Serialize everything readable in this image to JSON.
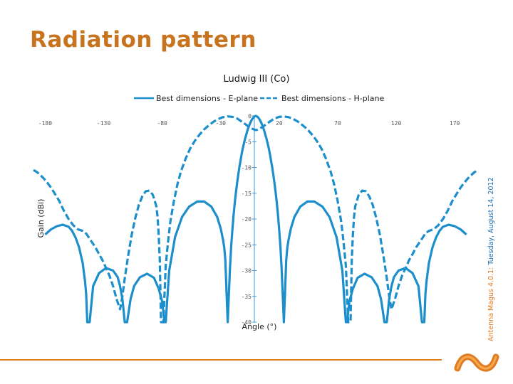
{
  "slide": {
    "title": "Radiation pattern",
    "side_note_prefix": "Antenna Magus 4.0.1:",
    "side_note_date": " Tuesday, August 14, 2012"
  },
  "colors": {
    "title": "#c8741f",
    "accent": "#e07b22",
    "series": "#1b8ecb",
    "note": "#1c6fb3"
  },
  "chart_data": {
    "type": "line",
    "title": "Ludwig III (Co)",
    "xlabel": "Angle (°)",
    "ylabel": "Gain (dBi)",
    "xlim": [
      -190,
      190
    ],
    "ylim": [
      -40,
      0
    ],
    "x_ticks": [
      -180,
      -130,
      -80,
      -30,
      20,
      70,
      120,
      170
    ],
    "y_ticks": [
      0,
      -5,
      -10,
      -15,
      -20,
      -25,
      -30,
      -35,
      -40
    ],
    "legend": {
      "position": "top-center"
    },
    "grid": false,
    "series": [
      {
        "name": "Best dimensions - E-plane",
        "style": "solid",
        "x": [
          -180,
          -175,
          -170,
          -165,
          -160,
          -157,
          -154,
          -151,
          -148,
          -146,
          -145,
          -144,
          -142,
          -139,
          -134,
          -128,
          -122,
          -118,
          -116,
          -114,
          -112,
          -110,
          -107,
          -104,
          -99,
          -93,
          -87,
          -83,
          -80,
          -79,
          -78,
          -77,
          -74,
          -69,
          -63,
          -57,
          -50,
          -44,
          -38,
          -33,
          -30,
          -28,
          -27,
          -26,
          -25,
          -24,
          -23,
          -22,
          -21,
          -20,
          -19,
          -18,
          -17,
          -16,
          -15,
          -14,
          -13,
          -12,
          -11,
          -10,
          -9,
          -8,
          -7,
          -6,
          -5,
          -4,
          -3,
          -2,
          -1,
          0,
          1,
          2,
          3,
          4,
          5,
          6,
          7,
          8,
          9,
          10,
          11,
          12,
          13,
          14,
          15,
          16,
          17,
          18,
          19,
          20,
          21,
          22,
          23,
          24,
          25,
          26,
          27,
          28,
          30,
          33,
          38,
          44,
          50,
          57,
          63,
          69,
          74,
          77,
          78,
          79,
          80,
          83,
          87,
          93,
          99,
          104,
          107,
          110,
          112,
          114,
          116,
          118,
          122,
          128,
          134,
          139,
          142,
          144,
          145,
          146,
          148,
          151,
          154,
          157,
          160,
          165,
          170,
          175,
          180
        ],
        "values": [
          -23,
          -22,
          -21.4,
          -21.1,
          -21.5,
          -22.3,
          -23.6,
          -25.5,
          -28.5,
          -32,
          -34.5,
          -40,
          -40,
          -33,
          -30.5,
          -29.5,
          -30,
          -31.3,
          -33,
          -35.5,
          -40,
          -40,
          -35.5,
          -33,
          -31.3,
          -30.6,
          -31.4,
          -33.5,
          -36,
          -38,
          -40,
          -40,
          -30,
          -23.5,
          -19.6,
          -17.6,
          -16.6,
          -16.6,
          -17.6,
          -19.6,
          -21.8,
          -24,
          -25.5,
          -28,
          -34,
          -40,
          -34.6,
          -29.2,
          -25.2,
          -22,
          -19.3,
          -17,
          -14.9,
          -13.1,
          -11.4,
          -9.9,
          -8.6,
          -7.3,
          -6.2,
          -5.2,
          -4.3,
          -3.5,
          -2.7,
          -2.1,
          -1.5,
          -1,
          -0.6,
          -0.3,
          -0.1,
          0,
          -0.1,
          -0.3,
          -0.6,
          -1,
          -1.5,
          -2.1,
          -2.7,
          -3.5,
          -4.3,
          -5.2,
          -6.2,
          -7.3,
          -8.6,
          -9.9,
          -11.4,
          -13.1,
          -14.9,
          -17,
          -19.3,
          -22,
          -25.2,
          -29.2,
          -34.6,
          -40,
          -34,
          -28,
          -25.5,
          -24,
          -21.8,
          -19.6,
          -17.6,
          -16.6,
          -16.6,
          -17.6,
          -19.6,
          -23.5,
          -30,
          -40,
          -40,
          -38,
          -36,
          -33.5,
          -31.4,
          -30.6,
          -31.3,
          -33,
          -35.5,
          -40,
          -40,
          -35.5,
          -33,
          -31.3,
          -30,
          -29.5,
          -30.5,
          -33,
          -40,
          -40,
          -34.5,
          -32,
          -28.5,
          -25.5,
          -23.6,
          -22.3,
          -21.5,
          -21.1,
          -21.4,
          -22,
          -23
        ]
      },
      {
        "name": "Best dimensions - H-plane",
        "style": "dashed",
        "x": [
          -190,
          -187,
          -184,
          -181,
          -178,
          -175,
          -172,
          -168,
          -164,
          -160,
          -156,
          -152,
          -148,
          -145,
          -143,
          -140,
          -137,
          -134,
          -131,
          -128,
          -125,
          -122,
          -119,
          -116,
          -114,
          -112,
          -109,
          -106,
          -103,
          -100,
          -97,
          -94,
          -91,
          -88,
          -85,
          -84,
          -83,
          -82,
          -81,
          -79,
          -77,
          -75,
          -73,
          -70,
          -67,
          -64,
          -60,
          -56,
          -52,
          -48,
          -44,
          -40,
          -36,
          -32,
          -28,
          -24,
          -20,
          -16,
          -12,
          -9,
          -6,
          -3,
          -1,
          0,
          1,
          3,
          6,
          9,
          12,
          16,
          20,
          24,
          28,
          32,
          36,
          40,
          44,
          48,
          52,
          56,
          60,
          64,
          67,
          70,
          73,
          75,
          77,
          79,
          81,
          82,
          83,
          84,
          85,
          88,
          91,
          94,
          97,
          100,
          103,
          106,
          109,
          112,
          114,
          116,
          119,
          122,
          125,
          128,
          131,
          134,
          137,
          140,
          143,
          145,
          148,
          152,
          156,
          160,
          164,
          168,
          172,
          175,
          178,
          181,
          184,
          187,
          190
        ],
        "values": [
          -10.5,
          -10.9,
          -11.5,
          -12.2,
          -13,
          -13.9,
          -15,
          -16.5,
          -18.4,
          -20,
          -21.2,
          -22,
          -22.3,
          -22.8,
          -23.5,
          -24.5,
          -25.5,
          -26.8,
          -28,
          -29.5,
          -31,
          -33,
          -35.5,
          -37.5,
          -35,
          -31.5,
          -27,
          -23,
          -19.8,
          -17.3,
          -15.6,
          -14.6,
          -14.5,
          -15.3,
          -17.5,
          -19.5,
          -23,
          -28,
          -40,
          -40,
          -29,
          -24.5,
          -20.5,
          -16.5,
          -13.3,
          -10.8,
          -8.3,
          -6.3,
          -4.8,
          -3.6,
          -2.6,
          -1.8,
          -1.1,
          -0.6,
          -0.25,
          -0.1,
          -0.2,
          -0.5,
          -1.1,
          -1.6,
          -2.1,
          -2.5,
          -2.7,
          -2.75,
          -2.7,
          -2.5,
          -2.1,
          -1.6,
          -1.1,
          -0.5,
          -0.2,
          -0.1,
          -0.25,
          -0.6,
          -1.1,
          -1.8,
          -2.6,
          -3.6,
          -4.8,
          -6.3,
          -8.3,
          -10.8,
          -13.3,
          -16.5,
          -20.5,
          -24.5,
          -29,
          -40,
          -40,
          -28,
          -23,
          -19.5,
          -17.5,
          -15.3,
          -14.5,
          -14.6,
          -15.6,
          -17.3,
          -19.8,
          -23,
          -27,
          -31.5,
          -35,
          -37.5,
          -35.5,
          -33,
          -31,
          -29.5,
          -28,
          -26.8,
          -25.5,
          -24.5,
          -23.5,
          -22.8,
          -22.3,
          -22,
          -21.2,
          -20,
          -18.4,
          -16.5,
          -15,
          -13.9,
          -13,
          -12.2,
          -11.5,
          -10.9,
          -10.5
        ]
      }
    ]
  }
}
